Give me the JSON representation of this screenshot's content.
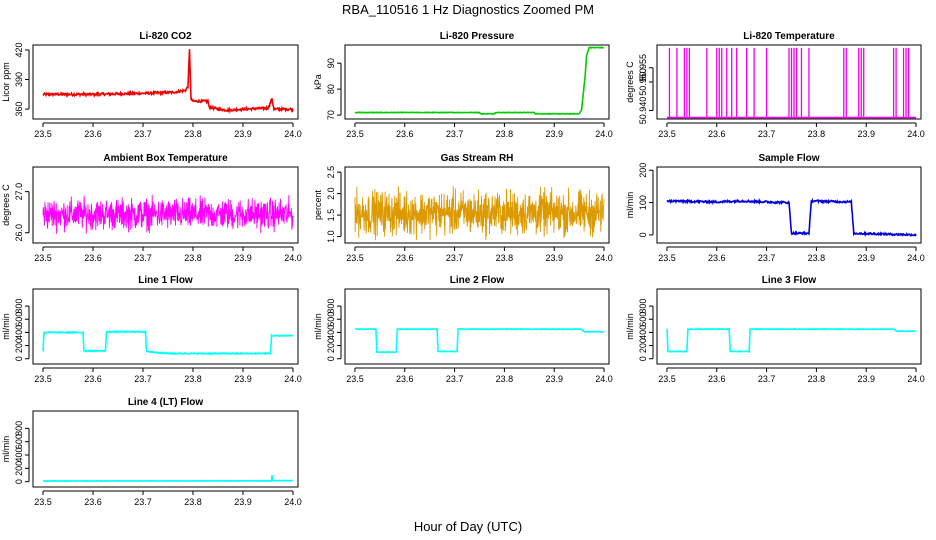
{
  "figure": {
    "title": "RBA_110516  1 Hz Diagnostics Zoomed PM",
    "xlabel": "Hour of Day (UTC)"
  },
  "chart_data": [
    {
      "id": "co2",
      "type": "line",
      "title": "Li-820 CO2",
      "ylabel": "Licor ppm",
      "color": "#ee0000",
      "xlim": [
        23.48,
        24.01
      ],
      "ylim": [
        350,
        425
      ],
      "xticks": [
        "23.5",
        "23.6",
        "23.7",
        "23.8",
        "23.9",
        "24.0"
      ],
      "yticks": [
        "360",
        "390",
        "420"
      ],
      "ytick_values": [
        360,
        390,
        420
      ],
      "noise": 1.2,
      "series_points": [
        [
          23.5,
          375
        ],
        [
          23.6,
          375
        ],
        [
          23.7,
          376
        ],
        [
          23.76,
          377
        ],
        [
          23.785,
          379
        ],
        [
          23.79,
          383
        ],
        [
          23.793,
          420
        ],
        [
          23.796,
          370
        ],
        [
          23.8,
          368
        ],
        [
          23.83,
          368
        ],
        [
          23.832,
          362
        ],
        [
          23.85,
          360
        ],
        [
          23.87,
          359
        ],
        [
          23.9,
          360
        ],
        [
          23.95,
          361
        ],
        [
          23.958,
          370
        ],
        [
          23.962,
          360
        ],
        [
          24.0,
          360
        ]
      ]
    },
    {
      "id": "pressure",
      "type": "line",
      "title": "Li-820 Pressure",
      "ylabel": "kPa",
      "color": "#00cc00",
      "xlim": [
        23.48,
        24.01
      ],
      "ylim": [
        68.5,
        97
      ],
      "xticks": [
        "23.5",
        "23.6",
        "23.7",
        "23.8",
        "23.9",
        "24.0"
      ],
      "yticks": [
        "70",
        "80",
        "90"
      ],
      "ytick_values": [
        70,
        80,
        90
      ],
      "noise": 0.1,
      "series_points": [
        [
          23.5,
          71
        ],
        [
          23.75,
          71
        ],
        [
          23.752,
          70.5
        ],
        [
          23.78,
          70.5
        ],
        [
          23.782,
          71
        ],
        [
          23.86,
          71
        ],
        [
          23.862,
          70.5
        ],
        [
          23.95,
          70.5
        ],
        [
          23.955,
          72
        ],
        [
          23.962,
          85
        ],
        [
          23.965,
          93
        ],
        [
          23.97,
          96
        ],
        [
          24.0,
          96
        ]
      ]
    },
    {
      "id": "li820temp",
      "type": "spikes",
      "title": "Li-820 Temperature",
      "ylabel": "degrees C",
      "color": "#ee00ee",
      "xlim": [
        23.48,
        24.01
      ],
      "ylim": [
        50.937,
        50.963
      ],
      "xticks": [
        "23.5",
        "23.6",
        "23.7",
        "23.8",
        "23.9",
        "24.0"
      ],
      "yticks": [
        "50.940",
        "50.950",
        "50.955"
      ],
      "ytick_values": [
        50.94,
        50.95,
        50.955
      ],
      "baseline": 50.9375,
      "peak": 50.962,
      "spike_x": [
        23.505,
        23.52,
        23.535,
        23.54,
        23.545,
        23.58,
        23.6,
        23.605,
        23.61,
        23.62,
        23.63,
        23.64,
        23.66,
        23.675,
        23.7,
        23.745,
        23.75,
        23.755,
        23.76,
        23.77,
        23.785,
        23.855,
        23.86,
        23.885,
        23.89,
        23.895,
        23.955,
        23.96,
        23.975,
        23.98,
        23.985
      ]
    },
    {
      "id": "boxtemp",
      "type": "noise",
      "title": "Ambient Box Temperature",
      "ylabel": "degrees C",
      "color": "#ff00ff",
      "xlim": [
        23.48,
        24.01
      ],
      "ylim": [
        25.75,
        27.6
      ],
      "xticks": [
        "23.5",
        "23.6",
        "23.7",
        "23.8",
        "23.9",
        "24.0"
      ],
      "yticks": [
        "26.0",
        "27.0"
      ],
      "ytick_values": [
        26.0,
        27.0
      ],
      "center": 26.45,
      "amplitude": 0.55
    },
    {
      "id": "rh",
      "type": "noise",
      "title": "Gas Stream RH",
      "ylabel": "percent",
      "color": "#dd9900",
      "xlim": [
        23.48,
        24.01
      ],
      "ylim": [
        0.85,
        2.62
      ],
      "xticks": [
        "23.5",
        "23.6",
        "23.7",
        "23.8",
        "23.9",
        "24.0"
      ],
      "yticks": [
        "1.0",
        "1.5",
        "2.0",
        "2.5"
      ],
      "ytick_values": [
        1.0,
        1.5,
        2.0,
        2.5
      ],
      "center": 1.55,
      "amplitude": 0.75
    },
    {
      "id": "sampleflow",
      "type": "line",
      "title": "Sample Flow",
      "ylabel": "ml/min",
      "color": "#0000dd",
      "xlim": [
        23.48,
        24.01
      ],
      "ylim": [
        -25,
        210
      ],
      "xticks": [
        "23.5",
        "23.6",
        "23.7",
        "23.8",
        "23.9",
        "24.0"
      ],
      "yticks": [
        "0",
        "100",
        "200"
      ],
      "ytick_values": [
        0,
        100,
        200
      ],
      "noise": 3,
      "series_points": [
        [
          23.5,
          105
        ],
        [
          23.6,
          102
        ],
        [
          23.65,
          105
        ],
        [
          23.7,
          102
        ],
        [
          23.745,
          100
        ],
        [
          23.75,
          5
        ],
        [
          23.785,
          5
        ],
        [
          23.79,
          105
        ],
        [
          23.87,
          102
        ],
        [
          23.875,
          5
        ],
        [
          23.95,
          2
        ],
        [
          24.0,
          0
        ]
      ]
    },
    {
      "id": "line1",
      "type": "line",
      "title": "Line 1 Flow",
      "ylabel": "ml/min",
      "color": "#00ffff",
      "xlim": [
        23.48,
        24.01
      ],
      "ylim": [
        -80,
        1060
      ],
      "xticks": [
        "23.5",
        "23.6",
        "23.7",
        "23.8",
        "23.9",
        "24.0"
      ],
      "yticks": [
        "0",
        "200",
        "400",
        "600",
        "800"
      ],
      "ytick_values": [
        0,
        200,
        400,
        600,
        800
      ],
      "noise": 8,
      "series_points": [
        [
          23.5,
          120
        ],
        [
          23.502,
          400
        ],
        [
          23.58,
          400
        ],
        [
          23.582,
          120
        ],
        [
          23.625,
          120
        ],
        [
          23.627,
          410
        ],
        [
          23.705,
          410
        ],
        [
          23.707,
          110
        ],
        [
          23.75,
          80
        ],
        [
          23.955,
          80
        ],
        [
          23.957,
          350
        ],
        [
          24.0,
          350
        ]
      ]
    },
    {
      "id": "line2",
      "type": "line",
      "title": "Line 2 Flow",
      "ylabel": "ml/min",
      "color": "#00ffff",
      "xlim": [
        23.48,
        24.01
      ],
      "ylim": [
        -80,
        1060
      ],
      "xticks": [
        "23.5",
        "23.6",
        "23.7",
        "23.8",
        "23.9",
        "24.0"
      ],
      "yticks": [
        "0",
        "200",
        "400",
        "600",
        "800"
      ],
      "ytick_values": [
        0,
        200,
        400,
        600,
        800
      ],
      "noise": 4,
      "series_points": [
        [
          23.5,
          450
        ],
        [
          23.542,
          450
        ],
        [
          23.544,
          100
        ],
        [
          23.583,
          100
        ],
        [
          23.585,
          450
        ],
        [
          23.665,
          450
        ],
        [
          23.667,
          110
        ],
        [
          23.705,
          110
        ],
        [
          23.707,
          450
        ],
        [
          23.955,
          450
        ],
        [
          23.96,
          410
        ],
        [
          24.0,
          410
        ]
      ]
    },
    {
      "id": "line3",
      "type": "line",
      "title": "Line 3 Flow",
      "ylabel": "ml/min",
      "color": "#00ffff",
      "xlim": [
        23.48,
        24.01
      ],
      "ylim": [
        -80,
        1060
      ],
      "xticks": [
        "23.5",
        "23.6",
        "23.7",
        "23.8",
        "23.9",
        "24.0"
      ],
      "yticks": [
        "0",
        "200",
        "400",
        "600",
        "800"
      ],
      "ytick_values": [
        0,
        200,
        400,
        600,
        800
      ],
      "noise": 4,
      "series_points": [
        [
          23.5,
          450
        ],
        [
          23.502,
          110
        ],
        [
          23.54,
          110
        ],
        [
          23.542,
          450
        ],
        [
          23.625,
          450
        ],
        [
          23.627,
          110
        ],
        [
          23.665,
          110
        ],
        [
          23.667,
          450
        ],
        [
          23.955,
          450
        ],
        [
          23.96,
          420
        ],
        [
          24.0,
          420
        ]
      ]
    },
    {
      "id": "line4",
      "type": "line",
      "title": "Line 4 (LT) Flow",
      "ylabel": "ml/min",
      "color": "#00ffff",
      "xlim": [
        23.48,
        24.01
      ],
      "ylim": [
        -80,
        1060
      ],
      "xticks": [
        "23.5",
        "23.6",
        "23.7",
        "23.8",
        "23.9",
        "24.0"
      ],
      "yticks": [
        "0",
        "200",
        "400",
        "600",
        "800"
      ],
      "ytick_values": [
        0,
        200,
        400,
        600,
        800
      ],
      "noise": 3,
      "series_points": [
        [
          23.5,
          10
        ],
        [
          23.95,
          12
        ],
        [
          23.957,
          15
        ],
        [
          23.958,
          100
        ],
        [
          23.96,
          15
        ],
        [
          24.0,
          15
        ]
      ]
    }
  ]
}
